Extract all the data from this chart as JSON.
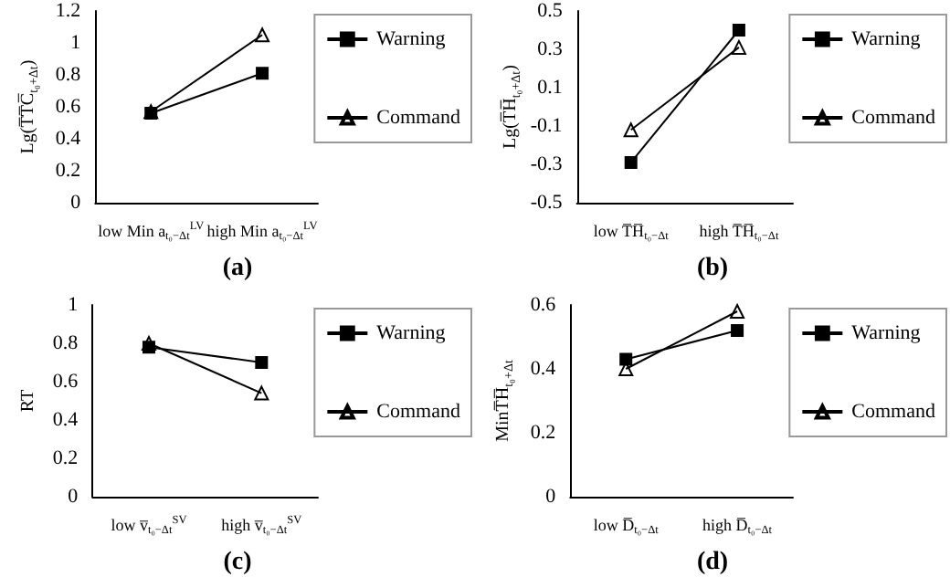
{
  "chart_data": [
    {
      "type": "line",
      "title": "(a)",
      "ylabel": "Lg(T̅T̅C̅$_{t₀+Δt}$)",
      "categories": [
        "low Min a$_{t₀−Δt}$$^{LV}$",
        "high Min a$_{t₀−Δt}$$^{LV}$"
      ],
      "series": [
        {
          "name": "Warning",
          "color": "#000000",
          "marker": "square",
          "values": [
            0.56,
            0.81
          ]
        },
        {
          "name": "Command",
          "color": "#000000",
          "marker": "triangle",
          "values": [
            0.57,
            1.05
          ]
        }
      ],
      "ylim": [
        0,
        1.2
      ],
      "yticks": [
        0,
        0.2,
        0.4,
        0.6,
        0.8,
        1,
        1.2
      ],
      "grid": false,
      "legend": "right"
    },
    {
      "type": "line",
      "title": "(b)",
      "ylabel": "Lg(T̅H̅$_{t₀+Δt}$)",
      "categories": [
        "low T̅H̅$_{t₀−Δt}$",
        "high T̅H̅$_{t₀−Δt}$"
      ],
      "series": [
        {
          "name": "Warning",
          "color": "#000000",
          "marker": "square",
          "values": [
            -0.29,
            0.4
          ]
        },
        {
          "name": "Command",
          "color": "#000000",
          "marker": "triangle",
          "values": [
            -0.12,
            0.31
          ]
        }
      ],
      "ylim": [
        -0.5,
        0.5
      ],
      "yticks": [
        -0.5,
        -0.3,
        -0.1,
        0.1,
        0.3,
        0.5
      ],
      "grid": false,
      "legend": "right"
    },
    {
      "type": "line",
      "title": "(c)",
      "ylabel": "RT",
      "categories": [
        "low v̅$_{t₀−Δt}$$^{SV}$",
        "high v̅$_{t₀−Δt}$$^{SV}$"
      ],
      "series": [
        {
          "name": "Warning",
          "color": "#000000",
          "marker": "square",
          "values": [
            0.78,
            0.7
          ]
        },
        {
          "name": "Command",
          "color": "#000000",
          "marker": "triangle",
          "values": [
            0.8,
            0.54
          ]
        }
      ],
      "ylim": [
        0,
        1
      ],
      "yticks": [
        0,
        0.2,
        0.4,
        0.6,
        0.8,
        1
      ],
      "grid": false,
      "legend": "right"
    },
    {
      "type": "line",
      "title": "(d)",
      "ylabel": "MinT̅H̅$_{t₀+Δt}$",
      "categories": [
        "low D̅$_{t₀−Δt}$",
        "high D̅$_{t₀−Δt}$"
      ],
      "series": [
        {
          "name": "Warning",
          "color": "#000000",
          "marker": "square",
          "values": [
            0.43,
            0.52
          ]
        },
        {
          "name": "Command",
          "color": "#000000",
          "marker": "triangle",
          "values": [
            0.4,
            0.58
          ]
        }
      ],
      "ylim": [
        0,
        0.6
      ],
      "yticks": [
        0,
        0.2,
        0.4,
        0.6
      ],
      "grid": false,
      "legend": "right"
    }
  ]
}
